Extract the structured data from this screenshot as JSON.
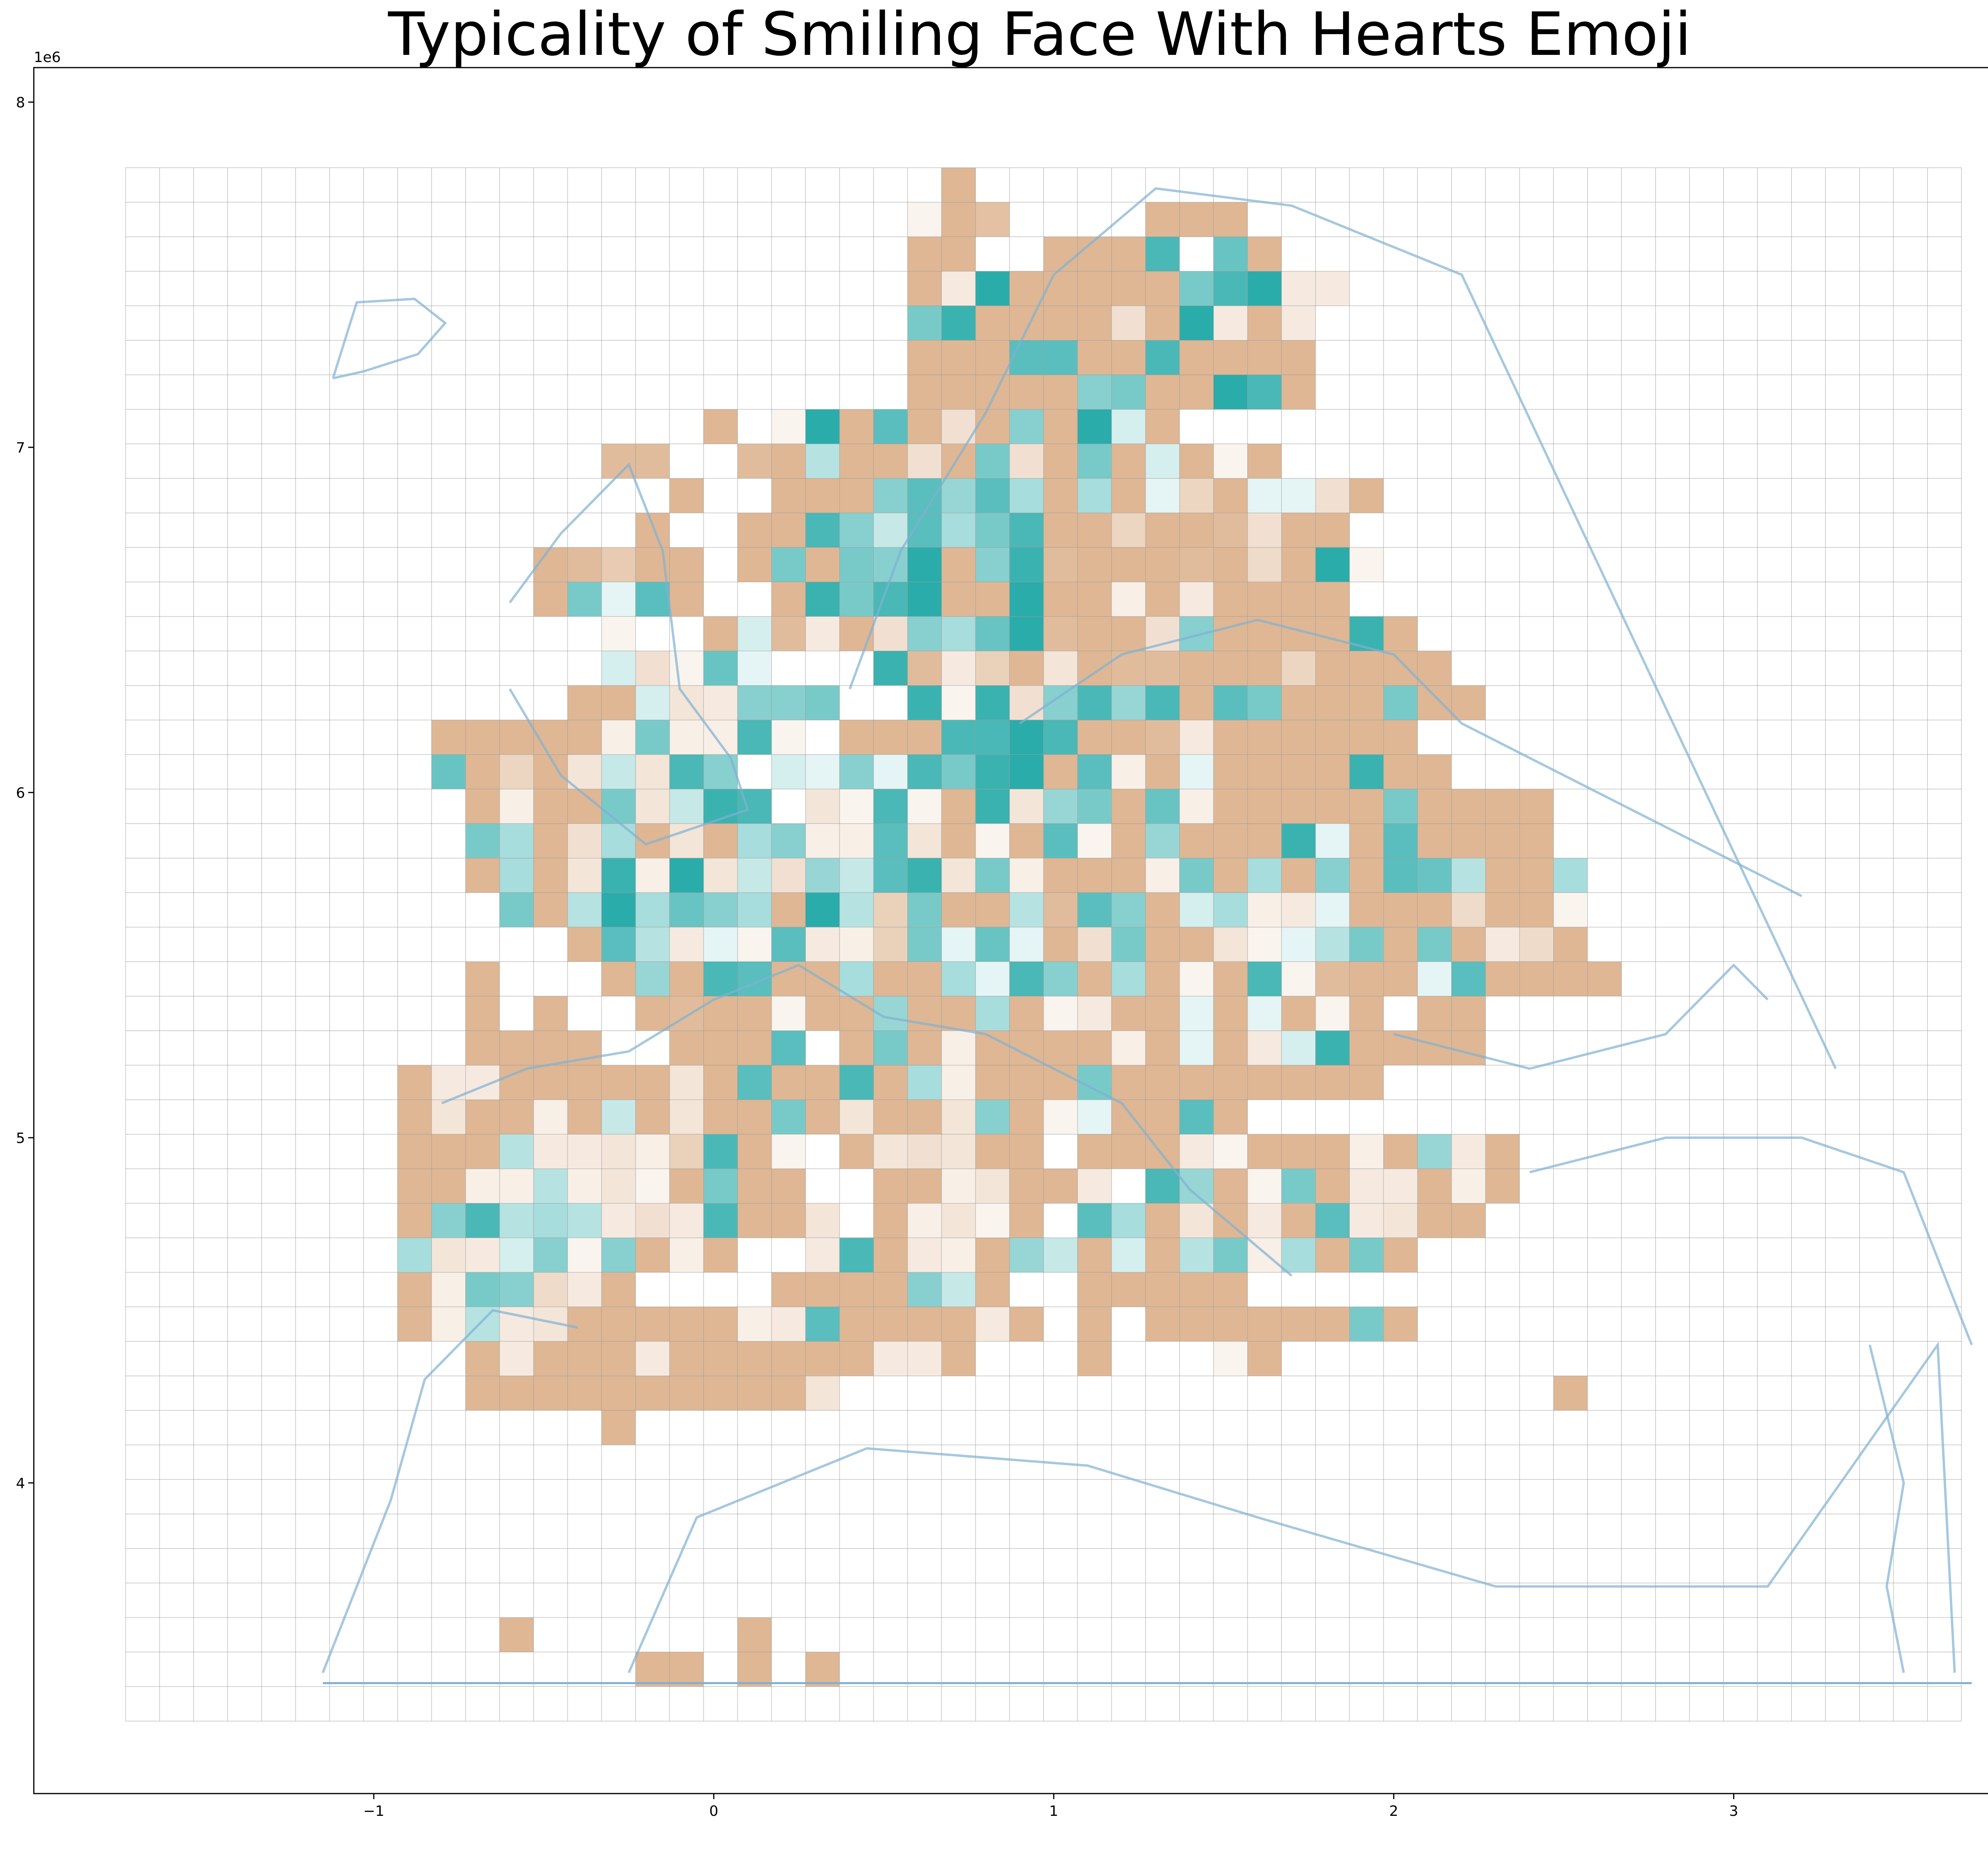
{
  "chart_data": {
    "type": "heatmap",
    "title": "Typicality of Smiling Face With Hearts Emoji",
    "xlabel": "",
    "ylabel": "",
    "x_offset_label": "1e6",
    "y_offset_label": "1e6",
    "xlim": [
      -2.0,
      3.9
    ],
    "ylim": [
      3.1,
      8.1
    ],
    "x_ticks": [
      -1,
      0,
      1,
      2,
      3
    ],
    "y_ticks": [
      4,
      5,
      6,
      7,
      8
    ],
    "x_tick_labels": [
      "−1",
      "0",
      "1",
      "2",
      "3"
    ],
    "y_tick_labels": [
      "4",
      "5",
      "6",
      "7",
      "8"
    ],
    "grid_origin": [
      -1.73,
      7.81
    ],
    "cell_size": 0.1,
    "n_cols": 54,
    "n_rows": 45,
    "legend": "none",
    "colormap": {
      "positive": "#2aacaa",
      "neutral": "#ffffff",
      "negative": "#dfb794"
    },
    "basemap_color": "#7fb0d2",
    "grid_color": "#999999",
    "cells": "................................................................................",
    "cells_rows": [
      "........................9......................",
      ".......................N9X....999..........",
      ".......................ZZ..ZZ9C.EZ.....",
      ".......................9PA99999FCAPP",
      ".......................FB9999R9AP9P",
      ".......................999DDZ9C9999",
      ".......................Z999ZGFZZAC9",
      ".................9.NA9D9R9G9AL9",
      "..............YY..YZJZ9R9FR9F9L9N9",
      "................9..Z9ZGDHDI9I9MTZMMR9",
      "...............9..9ZCGKDIFC9ZT9ZYR99",
      "............9YVZ9.9FZFGAZGBY9Z9YZS9AN",
      "............ZFMD9..9BFCAZZAZ9OZPZ999",
      "..............N..9LYP9RGIEAYZ9RGZ999B9",
      "..............LRNEM...BYPUZQ9YYZZ9T99Z9",
      ".............99LQPGGF..BNBRGCHC9DF999F99",
      ".........Z9999OFOOCN.Z9ZCCACZ9YPZZ9ZZZ",
      ".........E9T9QKQCG.LMGMCFBAZDO9MZZ9ZBZZ",
      "..........9O99FQKBC.QNCN9BQHF9EOZZZZ9F9999",
      "..........FI9RI9Q9IGOODQ9N9DNZHZZ9BMZDZ999",
      "..........9IZQBOAQKRHKDBQFO999OFZI9GZDEJ99I",
      "...........F9JAIEGIZAJUFZ9JYDGZLIOPMZZ9SZ9N",
      ".............ZDJPMNDPOUFMEM9RF9ZQNMJF9FZPS9",
      "..........9...9HZCD9ZI99IMCG9IZNZCNY9ZMDZZ9Z",
      "..........9.9..9Y99NZ9HZ9I9NPZ9MZMZN9.99",
      "..........9999..9Z9D.9F9O99Z9O9MZPLB9Z99",
      "........9PP99999QZD99C9IO99ZF99ZZ9ZZ9",
      "........9QZ9O9K9QZ9F9Q99QG9NMZ9D9",
      "........ZZ9JPPQOUC9N.9QRQ9Z.Z99PNZZZO9HP9",
      "........9ZOOJOQN9FZ9..Z9OQ9ZP.CH9NF9PPZO9",
      "........ZGCJIJPRPC9ZQ.9OQNZ.DI9QZPZDPQ99",
      "........IQPLGNG9O9..PC9PO9HK9LZJFOIZF9",
      "........9OFGSP9....999ZGKZ..Z9ZZ9",
      "........9OJPQ99999OPDZ9Z9PZ.9.9Z9Z99F9",
      "..........9P999PZ9999ZPP9...9...N9",
      "..........Z9Z9Z999Z9Q.....................Z",
      "..............9...................",
      "..............................",
      ".............................",
      ".............................",
      ".............................",
      ".............................",
      "...........9......9..........",
      "...............Z9.9.9..........",
      "............................"
    ]
  }
}
